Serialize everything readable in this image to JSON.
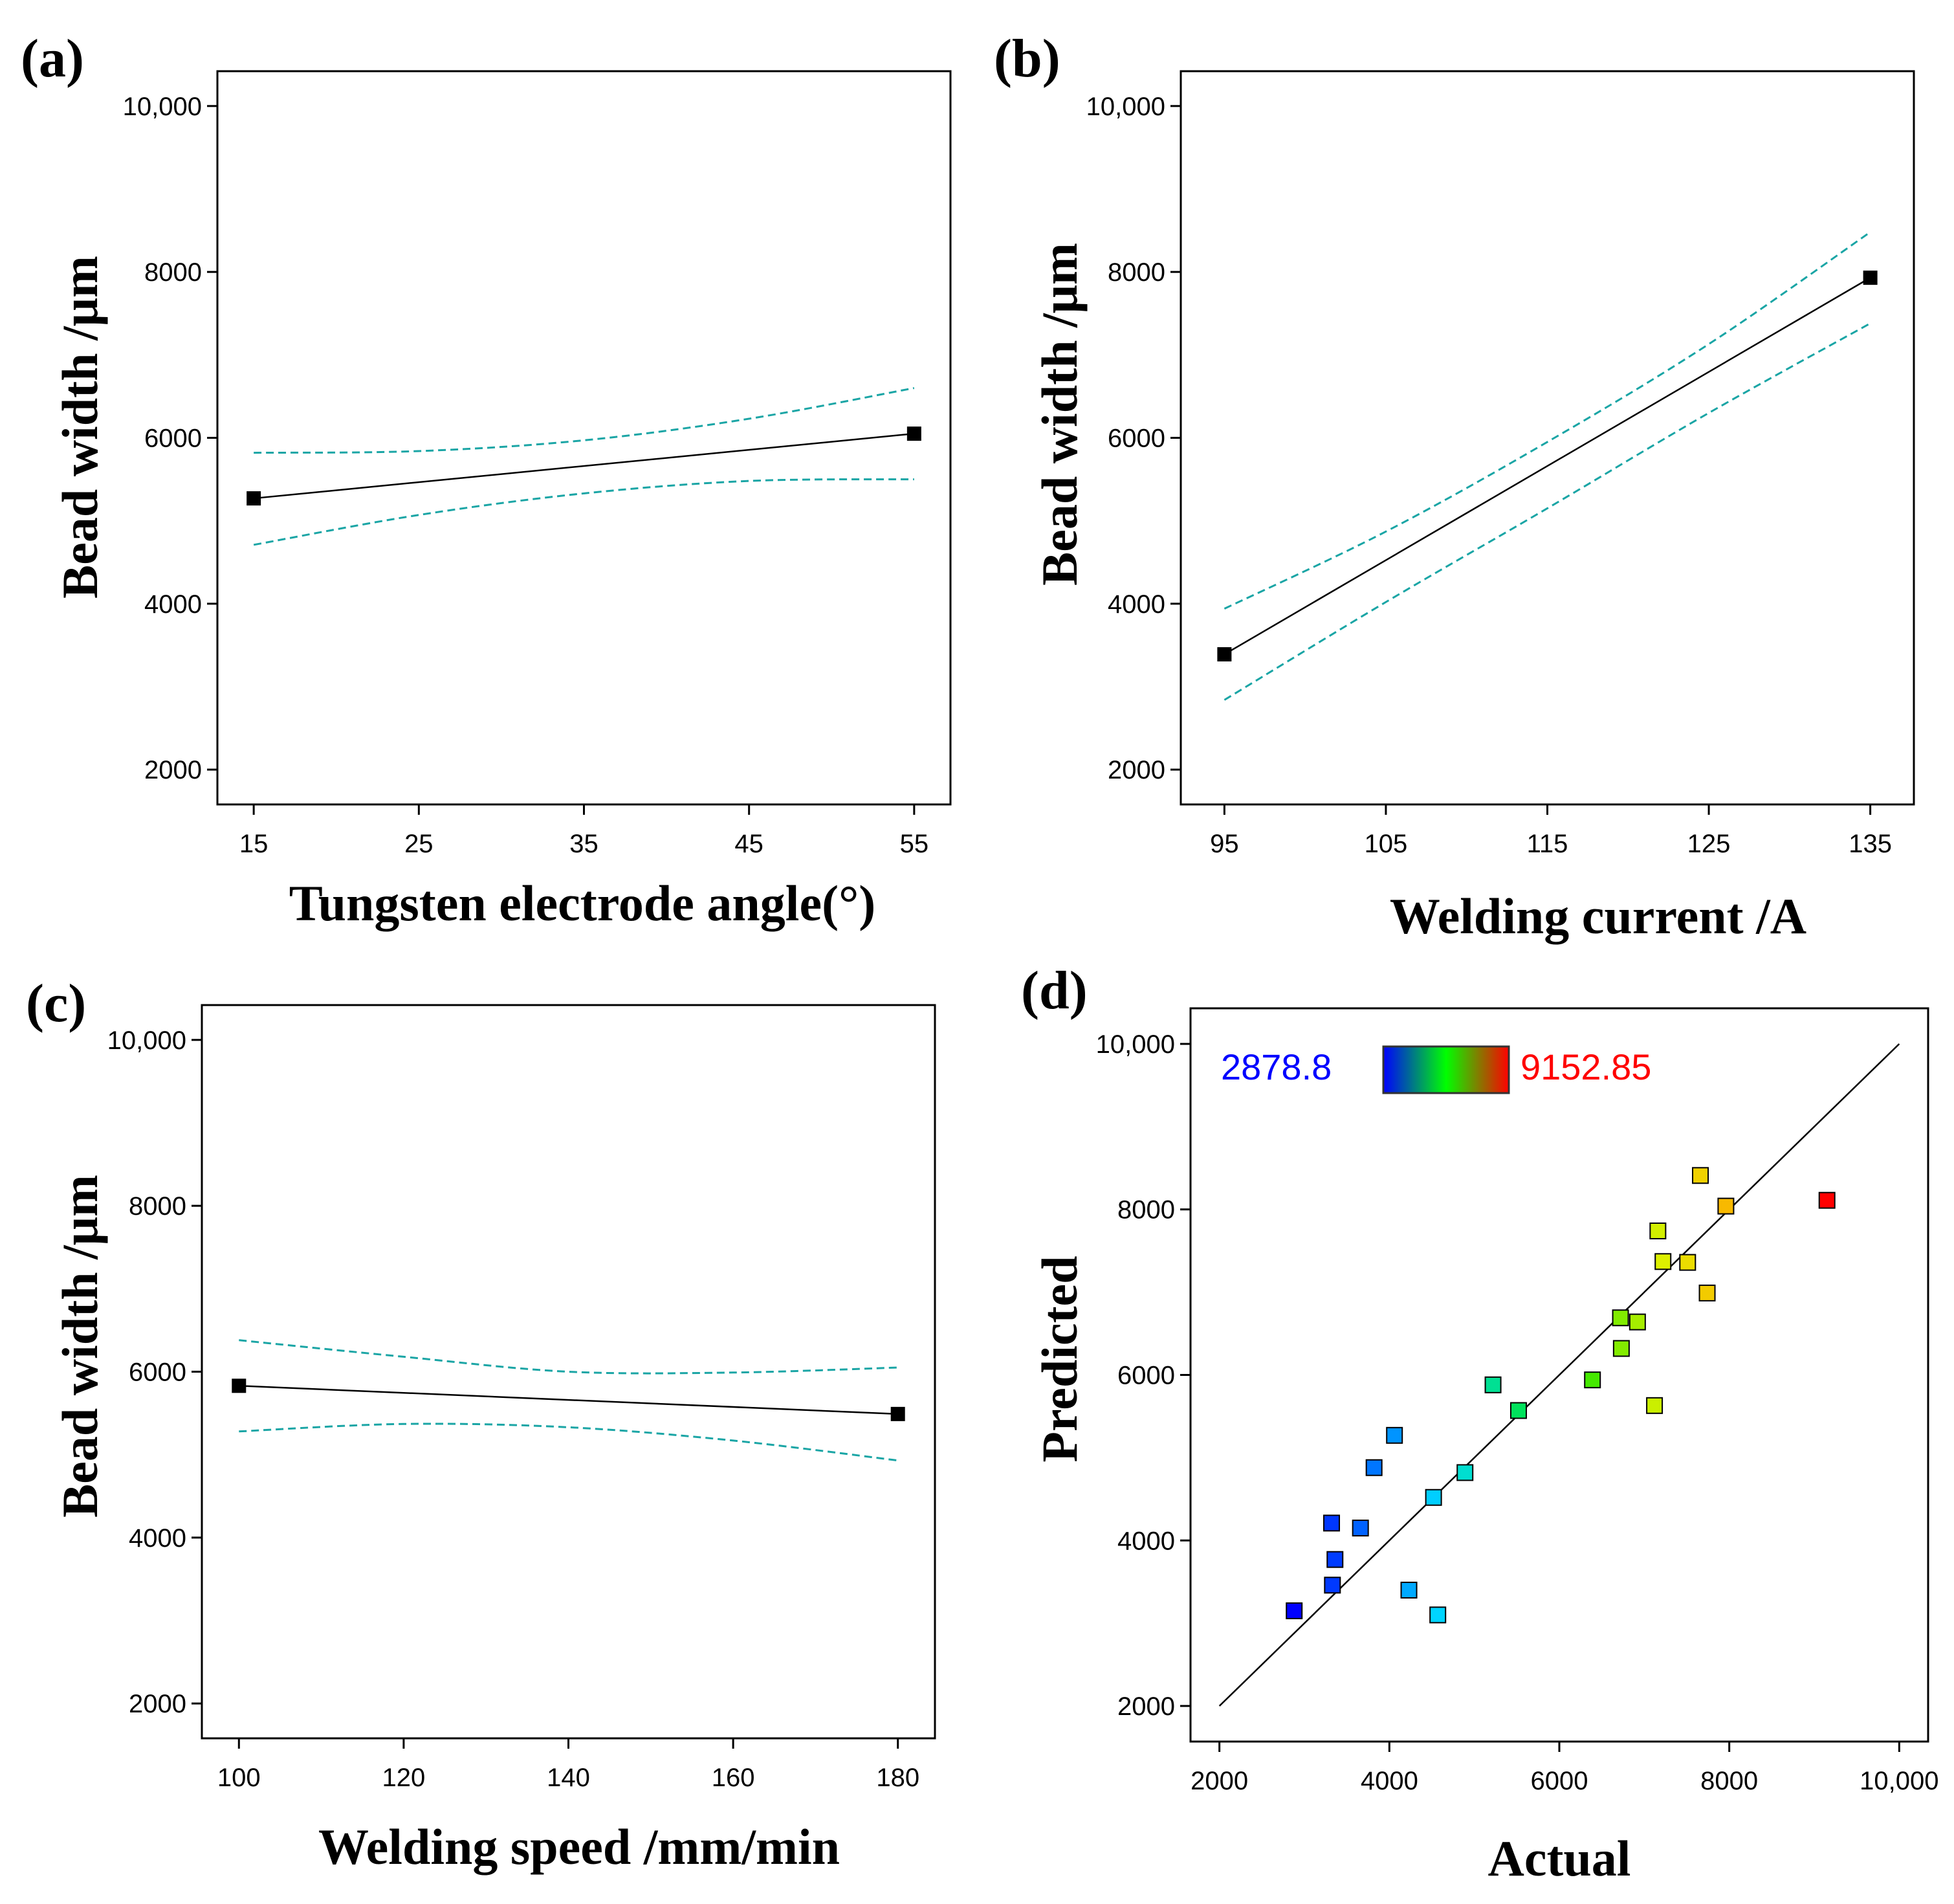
{
  "colors": {
    "line": "#000000",
    "ci": "#1aa5a5",
    "colorbar_low": "#0000ff",
    "colorbar_mid": "#00ff00",
    "colorbar_high": "#ff0000"
  },
  "chart_data": [
    {
      "panel": "(a)",
      "type": "line",
      "xlabel": "Tungsten electrode angle(°)",
      "ylabel": "Bead width /μm",
      "xticks": [
        15,
        25,
        35,
        45,
        55
      ],
      "yticks": [
        2000,
        4000,
        6000,
        8000,
        10000
      ],
      "ytick_labels": [
        "2000",
        "4000",
        "6000",
        "8000",
        "10,000"
      ],
      "xlim": [
        12.8,
        57.2
      ],
      "ylim": [
        1580,
        10420
      ],
      "grid": false,
      "mean": [
        {
          "x": 15,
          "y": 5270
        },
        {
          "x": 55,
          "y": 6050
        }
      ],
      "ci_upper": [
        {
          "x": 15,
          "y": 5820
        },
        {
          "x": 25,
          "y": 5840
        },
        {
          "x": 35,
          "y": 5970
        },
        {
          "x": 45,
          "y": 6230
        },
        {
          "x": 55,
          "y": 6600
        }
      ],
      "ci_lower": [
        {
          "x": 15,
          "y": 4710
        },
        {
          "x": 25,
          "y": 5070
        },
        {
          "x": 35,
          "y": 5330
        },
        {
          "x": 45,
          "y": 5480
        },
        {
          "x": 55,
          "y": 5500
        }
      ]
    },
    {
      "panel": "(b)",
      "type": "line",
      "xlabel": "Welding current /A",
      "ylabel": "Bead width /μm",
      "xticks": [
        95,
        105,
        115,
        125,
        135
      ],
      "yticks": [
        2000,
        4000,
        6000,
        8000,
        10000
      ],
      "ytick_labels": [
        "2000",
        "4000",
        "6000",
        "8000",
        "10,000"
      ],
      "xlim": [
        92.3,
        137.7
      ],
      "ylim": [
        1580,
        10420
      ],
      "grid": false,
      "mean": [
        {
          "x": 95,
          "y": 3390
        },
        {
          "x": 135,
          "y": 7930
        }
      ],
      "ci_upper": [
        {
          "x": 95,
          "y": 3940
        },
        {
          "x": 105,
          "y": 4870
        },
        {
          "x": 115,
          "y": 5950
        },
        {
          "x": 125,
          "y": 7130
        },
        {
          "x": 135,
          "y": 8480
        }
      ],
      "ci_lower": [
        {
          "x": 95,
          "y": 2840
        },
        {
          "x": 105,
          "y": 4020
        },
        {
          "x": 115,
          "y": 5150
        },
        {
          "x": 125,
          "y": 6300
        },
        {
          "x": 135,
          "y": 7380
        }
      ]
    },
    {
      "panel": "(c)",
      "type": "line",
      "xlabel": "Welding speed /mm/min",
      "ylabel": "Bead width /μm",
      "xticks": [
        100,
        120,
        140,
        160,
        180
      ],
      "yticks": [
        2000,
        4000,
        6000,
        8000,
        10000
      ],
      "ytick_labels": [
        "2000",
        "4000",
        "6000",
        "8000",
        "10,000"
      ],
      "xlim": [
        95.5,
        184.5
      ],
      "ylim": [
        1580,
        10420
      ],
      "grid": false,
      "mean": [
        {
          "x": 100,
          "y": 5830
        },
        {
          "x": 180,
          "y": 5490
        }
      ],
      "ci_upper": [
        {
          "x": 100,
          "y": 6380
        },
        {
          "x": 120,
          "y": 6180
        },
        {
          "x": 140,
          "y": 6000
        },
        {
          "x": 160,
          "y": 5990
        },
        {
          "x": 180,
          "y": 6050
        }
      ],
      "ci_lower": [
        {
          "x": 100,
          "y": 5280
        },
        {
          "x": 120,
          "y": 5370
        },
        {
          "x": 140,
          "y": 5330
        },
        {
          "x": 160,
          "y": 5170
        },
        {
          "x": 180,
          "y": 4930
        }
      ]
    },
    {
      "panel": "(d)",
      "type": "scatter",
      "xlabel": "Actual",
      "ylabel": "Predicted",
      "xticks": [
        2000,
        4000,
        6000,
        8000,
        10000
      ],
      "xtick_labels": [
        "2000",
        "4000",
        "6000",
        "8000",
        "10,000"
      ],
      "yticks": [
        2000,
        4000,
        6000,
        8000,
        10000
      ],
      "ytick_labels": [
        "2000",
        "4000",
        "6000",
        "8000",
        "10,000"
      ],
      "xlim": [
        1660,
        10340
      ],
      "ylim": [
        1570,
        10430
      ],
      "grid": false,
      "reference_line": [
        [
          2000,
          2000
        ],
        [
          10000,
          10000
        ]
      ],
      "colorbar": {
        "min_label": "2878.8",
        "max_label": "9152.85",
        "min": 2878.8,
        "max": 9152.85
      },
      "points": [
        {
          "x": 2880,
          "y": 3150
        },
        {
          "x": 3320,
          "y": 4210
        },
        {
          "x": 3330,
          "y": 3460
        },
        {
          "x": 3360,
          "y": 3770
        },
        {
          "x": 3660,
          "y": 4150
        },
        {
          "x": 3820,
          "y": 4880
        },
        {
          "x": 4060,
          "y": 5270
        },
        {
          "x": 4230,
          "y": 3400
        },
        {
          "x": 4520,
          "y": 4520
        },
        {
          "x": 4570,
          "y": 3100
        },
        {
          "x": 4890,
          "y": 4820
        },
        {
          "x": 5220,
          "y": 5880
        },
        {
          "x": 5520,
          "y": 5570
        },
        {
          "x": 6390,
          "y": 5940
        },
        {
          "x": 6720,
          "y": 6690
        },
        {
          "x": 6730,
          "y": 6320
        },
        {
          "x": 6920,
          "y": 6640
        },
        {
          "x": 7120,
          "y": 5630
        },
        {
          "x": 7160,
          "y": 7740
        },
        {
          "x": 7220,
          "y": 7370
        },
        {
          "x": 7510,
          "y": 7360
        },
        {
          "x": 7660,
          "y": 8410
        },
        {
          "x": 7740,
          "y": 6990
        },
        {
          "x": 7960,
          "y": 8040
        },
        {
          "x": 9150,
          "y": 8110
        }
      ]
    }
  ]
}
